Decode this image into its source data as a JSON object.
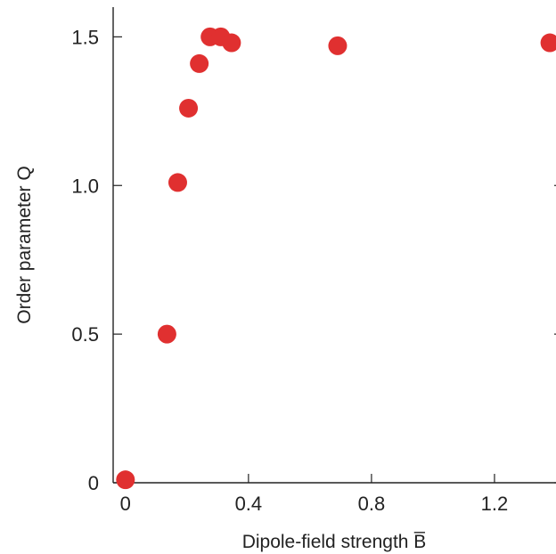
{
  "chart_data": {
    "type": "scatter",
    "xlabel": "Dipole-field strength B̅",
    "ylabel": "Order parameter Q",
    "xlim": [
      -0.04,
      1.4
    ],
    "ylim": [
      0,
      1.6
    ],
    "x_ticks": [
      0,
      0.4,
      0.8,
      1.2
    ],
    "x_tick_labels": [
      "0",
      "0.4",
      "0.8",
      "1.2"
    ],
    "y_ticks": [
      0,
      0.5,
      1.0,
      1.5
    ],
    "y_tick_labels": [
      "0",
      "0.5",
      "1.0",
      "1.5"
    ],
    "grid": false,
    "marker_color": "#e03030",
    "points": [
      {
        "x": 0.0,
        "y": 0.01
      },
      {
        "x": 0.135,
        "y": 0.5
      },
      {
        "x": 0.17,
        "y": 1.01
      },
      {
        "x": 0.205,
        "y": 1.26
      },
      {
        "x": 0.24,
        "y": 1.41
      },
      {
        "x": 0.275,
        "y": 1.5
      },
      {
        "x": 0.31,
        "y": 1.5
      },
      {
        "x": 0.345,
        "y": 1.48
      },
      {
        "x": 0.69,
        "y": 1.47
      },
      {
        "x": 1.38,
        "y": 1.48
      }
    ]
  }
}
